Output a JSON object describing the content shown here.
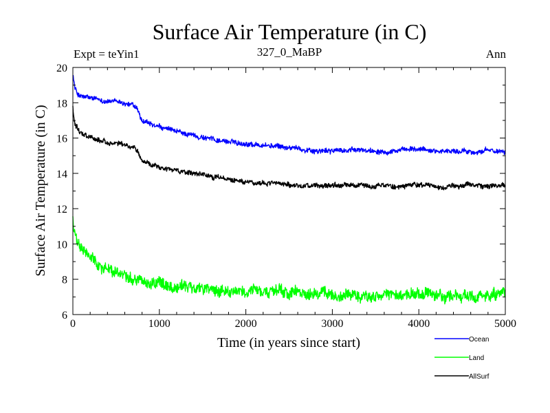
{
  "chart_data": {
    "type": "line",
    "title": "Surface Air Temperature (in C)",
    "experiment_label": "Expt = teYin1",
    "subtitle": "327_0_MaBP",
    "season_label": "Ann",
    "xlabel": "Time (in years since start)",
    "ylabel": "Surface Air Temperature (in C)",
    "xlim": [
      0,
      5000
    ],
    "ylim": [
      6,
      20
    ],
    "xticks": [
      0,
      1000,
      2000,
      3000,
      4000,
      5000
    ],
    "yticks": [
      6,
      8,
      10,
      12,
      14,
      16,
      18,
      20
    ],
    "grid": false,
    "legend_position": "bottom-right, below plot",
    "series": [
      {
        "name": "Ocean",
        "color": "#0000ff",
        "noise": 0.12,
        "x": [
          0,
          20,
          50,
          100,
          200,
          300,
          400,
          500,
          600,
          700,
          750,
          780,
          800,
          850,
          900,
          1000,
          1200,
          1400,
          1600,
          1800,
          2000,
          2200,
          2400,
          2600,
          2800,
          2900,
          3000,
          3200,
          3400,
          3600,
          3800,
          4000,
          4200,
          4400,
          4600,
          4800,
          5000
        ],
        "values": [
          19.7,
          18.9,
          18.5,
          18.35,
          18.25,
          18.15,
          18.1,
          18.05,
          17.95,
          17.85,
          17.6,
          17.1,
          16.9,
          16.85,
          16.75,
          16.6,
          16.35,
          16.15,
          15.95,
          15.8,
          15.7,
          15.6,
          15.5,
          15.4,
          15.3,
          15.25,
          15.3,
          15.3,
          15.3,
          15.3,
          15.3,
          15.35,
          15.3,
          15.25,
          15.25,
          15.25,
          15.3
        ]
      },
      {
        "name": "Land",
        "color": "#00ff00",
        "noise": 0.28,
        "x": [
          0,
          10,
          30,
          60,
          100,
          200,
          300,
          400,
          500,
          600,
          700,
          800,
          1000,
          1200,
          1400,
          1600,
          1800,
          2000,
          2500,
          3000,
          3500,
          4000,
          4500,
          5000
        ],
        "values": [
          11.6,
          10.8,
          10.3,
          10.0,
          9.7,
          9.2,
          8.8,
          8.6,
          8.4,
          8.3,
          8.15,
          7.95,
          7.8,
          7.6,
          7.5,
          7.4,
          7.35,
          7.3,
          7.2,
          7.15,
          7.05,
          7.05,
          7.0,
          7.05
        ]
      },
      {
        "name": "AllSurf",
        "color": "#000000",
        "noise": 0.12,
        "x": [
          0,
          20,
          50,
          100,
          200,
          300,
          400,
          500,
          600,
          700,
          750,
          780,
          800,
          850,
          900,
          1000,
          1200,
          1400,
          1600,
          1800,
          2000,
          2200,
          2400,
          2600,
          2800,
          3000,
          3200,
          3400,
          3600,
          3800,
          4000,
          4200,
          4400,
          4600,
          4800,
          5000
        ],
        "values": [
          17.7,
          16.9,
          16.6,
          16.3,
          16.1,
          15.9,
          15.75,
          15.65,
          15.6,
          15.5,
          15.3,
          14.9,
          14.7,
          14.6,
          14.5,
          14.35,
          14.15,
          13.95,
          13.8,
          13.65,
          13.55,
          13.45,
          13.4,
          13.35,
          13.3,
          13.25,
          13.3,
          13.3,
          13.3,
          13.3,
          13.3,
          13.3,
          13.3,
          13.3,
          13.3,
          13.25
        ]
      }
    ]
  }
}
